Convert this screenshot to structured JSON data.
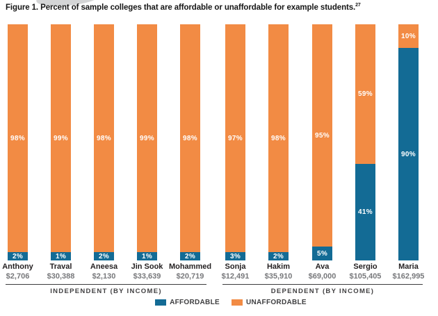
{
  "figure": {
    "title": "Figure 1. Percent of sample colleges that are affordable or unaffordable for example students.",
    "footnote_reference": "27"
  },
  "colors": {
    "affordable_blue": "#136B95",
    "unaffordable_orange": "#F28B44",
    "background": "#ffffff"
  },
  "chart_data": {
    "type": "bar",
    "stacked": true,
    "stacked_total_percent": 100,
    "title": "Figure 1. Percent of sample colleges that are affordable or unaffordable for example students.",
    "title_superscript": "27",
    "value_label_format": "percent",
    "legend_position": "bottom",
    "categories": [
      {
        "name": "Anthony",
        "income": "$2,706"
      },
      {
        "name": "Traval",
        "income": "$30,388"
      },
      {
        "name": "Aneesa",
        "income": "$2,130"
      },
      {
        "name": "Jin Sook",
        "income": "$33,639"
      },
      {
        "name": "Mohammed",
        "income": "$20,719"
      },
      {
        "name": "Sonja",
        "income": "$12,491"
      },
      {
        "name": "Hakim",
        "income": "$35,910"
      },
      {
        "name": "Ava",
        "income": "$69,000"
      },
      {
        "name": "Sergio",
        "income": "$105,405"
      },
      {
        "name": "Maria",
        "income": "$162,995"
      }
    ],
    "series": [
      {
        "name": "AFFORDABLE",
        "color": "#136B95",
        "values": [
          2,
          1,
          2,
          1,
          2,
          3,
          2,
          5,
          41,
          90
        ]
      },
      {
        "name": "UNAFFORDABLE",
        "color": "#F28B44",
        "values": [
          98,
          99,
          98,
          99,
          98,
          97,
          98,
          95,
          59,
          10
        ]
      }
    ],
    "groups": [
      {
        "label": "INDEPENDENT (BY INCOME)",
        "category_range": [
          0,
          4
        ]
      },
      {
        "label": "DEPENDENT (BY INCOME)",
        "category_range": [
          5,
          9
        ]
      }
    ]
  }
}
